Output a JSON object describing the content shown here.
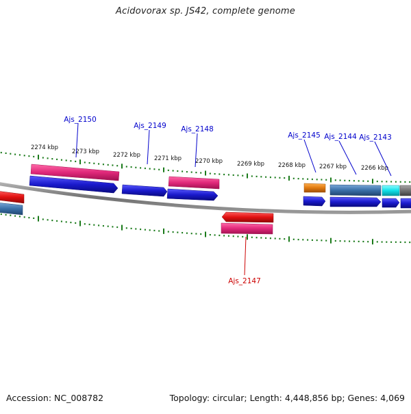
{
  "title": "Acidovorax sp. JS42, complete genome",
  "footer": {
    "accession": "Accession: NC_008782",
    "topology": "Topology: circular; Length: 4,448,856 bp; Genes: 4,069"
  },
  "kbp_labels": [
    "2274 kbp",
    "2273 kbp",
    "2272 kbp",
    "2271 kbp",
    "2270 kbp",
    "2269 kbp",
    "2268 kbp",
    "2267 kbp",
    "2266 kbp"
  ],
  "gene_labels": [
    {
      "text": "Ajs_2150",
      "color": "#0000cc"
    },
    {
      "text": "Ajs_2149",
      "color": "#0000cc"
    },
    {
      "text": "Ajs_2148",
      "color": "#0000cc"
    },
    {
      "text": "Ajs_2145",
      "color": "#0000cc"
    },
    {
      "text": "Ajs_2144",
      "color": "#0000cc"
    },
    {
      "text": "Ajs_2143",
      "color": "#0000cc"
    },
    {
      "text": "Ajs_2147",
      "color": "#cc0000"
    }
  ],
  "colors": {
    "tick": "#1a7a1a",
    "backbone": "#808080",
    "cds_blue": "#1a1acc",
    "cds_magenta": "#e0287a",
    "cds_red": "#e01010",
    "cds_orange": "#e07a10",
    "cds_steel": "#3a70a8",
    "cds_cyan": "#10e0e8",
    "cds_grey": "#707070",
    "label_blue": "#0000cc",
    "label_red": "#cc0000"
  }
}
